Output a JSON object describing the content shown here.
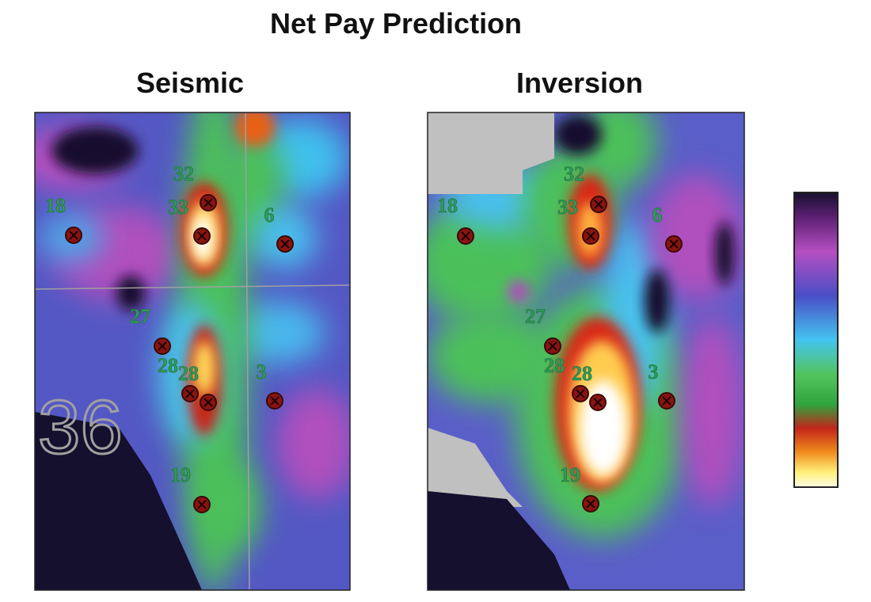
{
  "header": {
    "title": "Net Pay Prediction"
  },
  "panels": [
    {
      "title": "Seismic",
      "section_label": "36",
      "wells": [
        {
          "label": "32"
        },
        {
          "label": "33"
        },
        {
          "label": "18"
        },
        {
          "label": "6"
        },
        {
          "label": "27"
        },
        {
          "label": "28"
        },
        {
          "label": "28"
        },
        {
          "label": "3"
        },
        {
          "label": "19"
        }
      ]
    },
    {
      "title": "Inversion",
      "wells": [
        {
          "label": "32"
        },
        {
          "label": "33"
        },
        {
          "label": "18"
        },
        {
          "label": "6"
        },
        {
          "label": "27"
        },
        {
          "label": "28"
        },
        {
          "label": "28"
        },
        {
          "label": "3"
        },
        {
          "label": "19"
        }
      ]
    }
  ]
}
